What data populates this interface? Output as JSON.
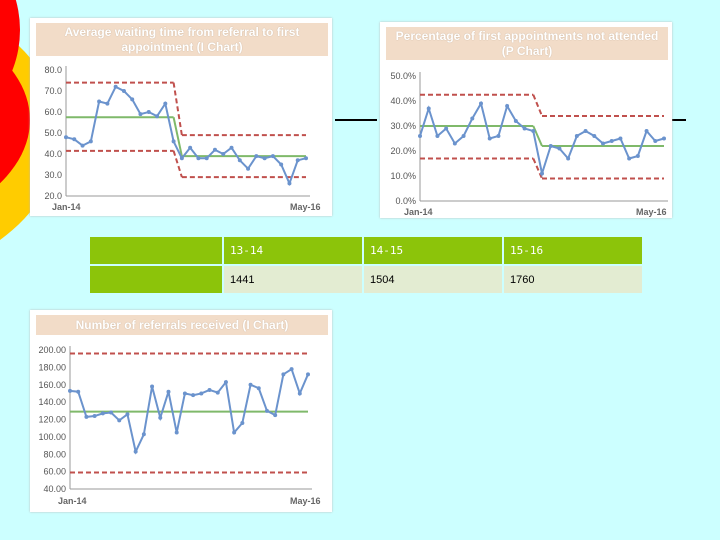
{
  "table": {
    "headers": [
      "",
      "13-14",
      "14-15",
      "15-16"
    ],
    "row": [
      "",
      "1441",
      "1504",
      "1760"
    ]
  },
  "chart_data": [
    {
      "id": "wait",
      "type": "line",
      "title_lines": [
        "Average waiting time from referral to first",
        "appointment (I Chart)"
      ],
      "y_ticks": [
        "80.0",
        "70.0",
        "60.0",
        "50.0",
        "40.0",
        "30.0",
        "20.0"
      ],
      "ylim": [
        20,
        80
      ],
      "x_labels": [
        "Jan-14",
        "May-16"
      ],
      "values": [
        48,
        47,
        44,
        46,
        65,
        64,
        72,
        70,
        66,
        59,
        60,
        58,
        64,
        46,
        38,
        43,
        38,
        38,
        42,
        40,
        43,
        37,
        33,
        39,
        38,
        39,
        35,
        26,
        37,
        38
      ],
      "mean_segments": [
        {
          "from": 0,
          "to": 13,
          "y": 57.5
        },
        {
          "from": 14,
          "to": 29,
          "y": 39
        }
      ],
      "ucl_segments": [
        {
          "from": 0,
          "to": 13,
          "y": 74
        },
        {
          "from": 14,
          "to": 29,
          "y": 49
        }
      ],
      "lcl_segments": [
        {
          "from": 0,
          "to": 13,
          "y": 41.5
        },
        {
          "from": 14,
          "to": 29,
          "y": 29
        }
      ],
      "colors": {
        "series": "#6b93cd",
        "mean": "#7fb96a",
        "limits": "#c0504d"
      }
    },
    {
      "id": "dna",
      "type": "line",
      "title_lines": [
        "Percentage of first appointments not attended",
        "(P Chart)"
      ],
      "y_ticks": [
        "50.0%",
        "40.0%",
        "30.0%",
        "20.0%",
        "10.0%",
        "0.0%"
      ],
      "ylim": [
        0,
        50
      ],
      "x_labels": [
        "Jan-14",
        "May-16"
      ],
      "values": [
        26,
        37,
        26,
        29,
        23,
        26,
        33,
        39,
        25,
        26,
        38,
        32,
        29,
        28,
        11,
        22,
        21,
        17,
        26,
        28,
        26,
        23,
        24,
        25,
        17,
        18,
        28,
        24,
        25
      ],
      "mean_segments": [
        {
          "from": 0,
          "to": 13,
          "y": 30
        },
        {
          "from": 14,
          "to": 28,
          "y": 22
        }
      ],
      "ucl_segments": [
        {
          "from": 0,
          "to": 13,
          "y": 42.5
        },
        {
          "from": 14,
          "to": 28,
          "y": 34
        }
      ],
      "lcl_segments": [
        {
          "from": 0,
          "to": 13,
          "y": 17
        },
        {
          "from": 14,
          "to": 28,
          "y": 9
        }
      ],
      "colors": {
        "series": "#6b93cd",
        "mean": "#7fb96a",
        "limits": "#c0504d"
      }
    },
    {
      "id": "ref",
      "type": "line",
      "title_lines": [
        "Number of referrals received (I Chart)"
      ],
      "y_ticks": [
        "200.00",
        "180.00",
        "160.00",
        "140.00",
        "120.00",
        "100.00",
        "80.00",
        "60.00",
        "40.00"
      ],
      "ylim": [
        40,
        200
      ],
      "x_labels": [
        "Jan-14",
        "May-16"
      ],
      "values": [
        153,
        152,
        123,
        124,
        127,
        128,
        119,
        126,
        83,
        103,
        158,
        122,
        152,
        105,
        150,
        148,
        150,
        154,
        151,
        163,
        105,
        116,
        160,
        156,
        130,
        125,
        172,
        178,
        150,
        172
      ],
      "mean_segments": [
        {
          "from": 0,
          "to": 29,
          "y": 129
        }
      ],
      "ucl_segments": [
        {
          "from": 0,
          "to": 29,
          "y": 196
        }
      ],
      "lcl_segments": [
        {
          "from": 0,
          "to": 29,
          "y": 59
        }
      ],
      "colors": {
        "series": "#6b93cd",
        "mean": "#7fb96a",
        "limits": "#c0504d"
      }
    }
  ]
}
